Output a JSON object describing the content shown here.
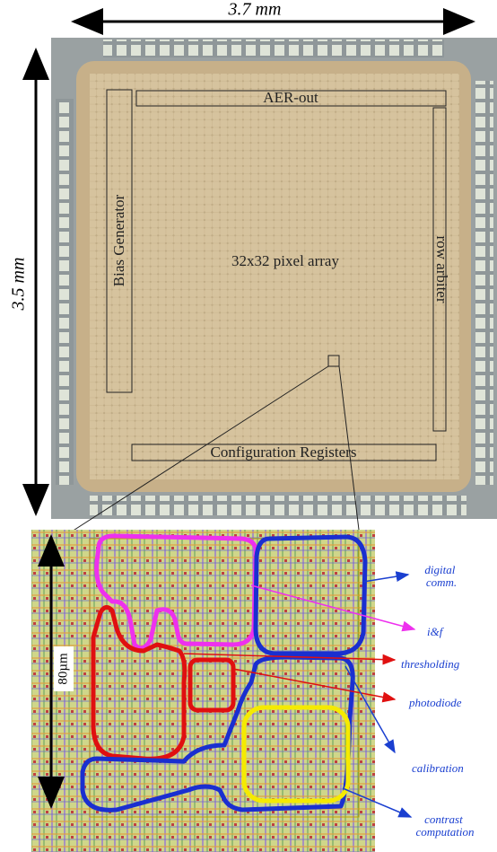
{
  "die": {
    "width_label": "3.7 mm",
    "height_label": "3.5 mm",
    "blocks": {
      "aer_out": "AER-out",
      "bias_generator": "Bias Generator",
      "pixel_array": "32x32 pixel array",
      "row_arbiter": "row arbiter",
      "configuration_registers": "Configuration Registers"
    }
  },
  "pixel_layout": {
    "size_label": "80µm",
    "annotations": {
      "digital_comm": [
        "digital",
        "comm."
      ],
      "i_and_f": "i&f",
      "thresholding": "thresholding",
      "photodiode": "photodiode",
      "calibration": "calibration",
      "contrast_computation": [
        "contrast",
        "computation"
      ]
    }
  }
}
